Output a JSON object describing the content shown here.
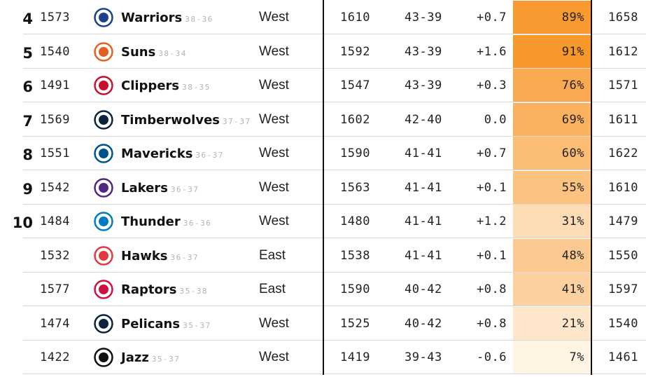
{
  "rows": [
    {
      "rank": "4",
      "elo": "1573",
      "team": "Warriors",
      "record": "38-36",
      "conf": "West",
      "current": "1610",
      "projected": "43-39",
      "diff": "+0.7",
      "pct": "89%",
      "pct_value": 89,
      "full": "1658",
      "logo": "warriors-logo-icon",
      "logo_color": "#1d428a"
    },
    {
      "rank": "5",
      "elo": "1540",
      "team": "Suns",
      "record": "38-34",
      "conf": "West",
      "current": "1592",
      "projected": "43-39",
      "diff": "+1.6",
      "pct": "91%",
      "pct_value": 91,
      "full": "1612",
      "logo": "suns-logo-icon",
      "logo_color": "#e56020"
    },
    {
      "rank": "6",
      "elo": "1491",
      "team": "Clippers",
      "record": "38-35",
      "conf": "West",
      "current": "1547",
      "projected": "43-39",
      "diff": "+0.3",
      "pct": "76%",
      "pct_value": 76,
      "full": "1571",
      "logo": "clippers-logo-icon",
      "logo_color": "#c8102e"
    },
    {
      "rank": "7",
      "elo": "1569",
      "team": "Timberwolves",
      "record": "37-37",
      "conf": "West",
      "current": "1602",
      "projected": "42-40",
      "diff": "0.0",
      "pct": "69%",
      "pct_value": 69,
      "full": "1611",
      "logo": "timberwolves-logo-icon",
      "logo_color": "#0c2340"
    },
    {
      "rank": "8",
      "elo": "1551",
      "team": "Mavericks",
      "record": "36-37",
      "conf": "West",
      "current": "1590",
      "projected": "41-41",
      "diff": "+0.7",
      "pct": "60%",
      "pct_value": 60,
      "full": "1622",
      "logo": "mavericks-logo-icon",
      "logo_color": "#00538c"
    },
    {
      "rank": "9",
      "elo": "1542",
      "team": "Lakers",
      "record": "36-37",
      "conf": "West",
      "current": "1563",
      "projected": "41-41",
      "diff": "+0.1",
      "pct": "55%",
      "pct_value": 55,
      "full": "1610",
      "logo": "lakers-logo-icon",
      "logo_color": "#552583"
    },
    {
      "rank": "10",
      "elo": "1484",
      "team": "Thunder",
      "record": "36-36",
      "conf": "West",
      "current": "1480",
      "projected": "41-41",
      "diff": "+1.2",
      "pct": "31%",
      "pct_value": 31,
      "full": "1479",
      "logo": "thunder-logo-icon",
      "logo_color": "#007ac1"
    },
    {
      "rank": "",
      "elo": "1532",
      "team": "Hawks",
      "record": "36-37",
      "conf": "East",
      "current": "1538",
      "projected": "41-41",
      "diff": "+0.1",
      "pct": "48%",
      "pct_value": 48,
      "full": "1550",
      "logo": "hawks-logo-icon",
      "logo_color": "#e03a3e"
    },
    {
      "rank": "",
      "elo": "1577",
      "team": "Raptors",
      "record": "35-38",
      "conf": "East",
      "current": "1590",
      "projected": "40-42",
      "diff": "+0.8",
      "pct": "41%",
      "pct_value": 41,
      "full": "1597",
      "logo": "raptors-logo-icon",
      "logo_color": "#ce1141"
    },
    {
      "rank": "",
      "elo": "1474",
      "team": "Pelicans",
      "record": "35-37",
      "conf": "West",
      "current": "1525",
      "projected": "40-42",
      "diff": "+0.8",
      "pct": "21%",
      "pct_value": 21,
      "full": "1540",
      "logo": "pelicans-logo-icon",
      "logo_color": "#0c2340"
    },
    {
      "rank": "",
      "elo": "1422",
      "team": "Jazz",
      "record": "35-37",
      "conf": "West",
      "current": "1419",
      "projected": "39-43",
      "diff": "-0.6",
      "pct": "7%",
      "pct_value": 7,
      "full": "1461",
      "logo": "jazz-logo-icon",
      "logo_color": "#111111"
    }
  ]
}
